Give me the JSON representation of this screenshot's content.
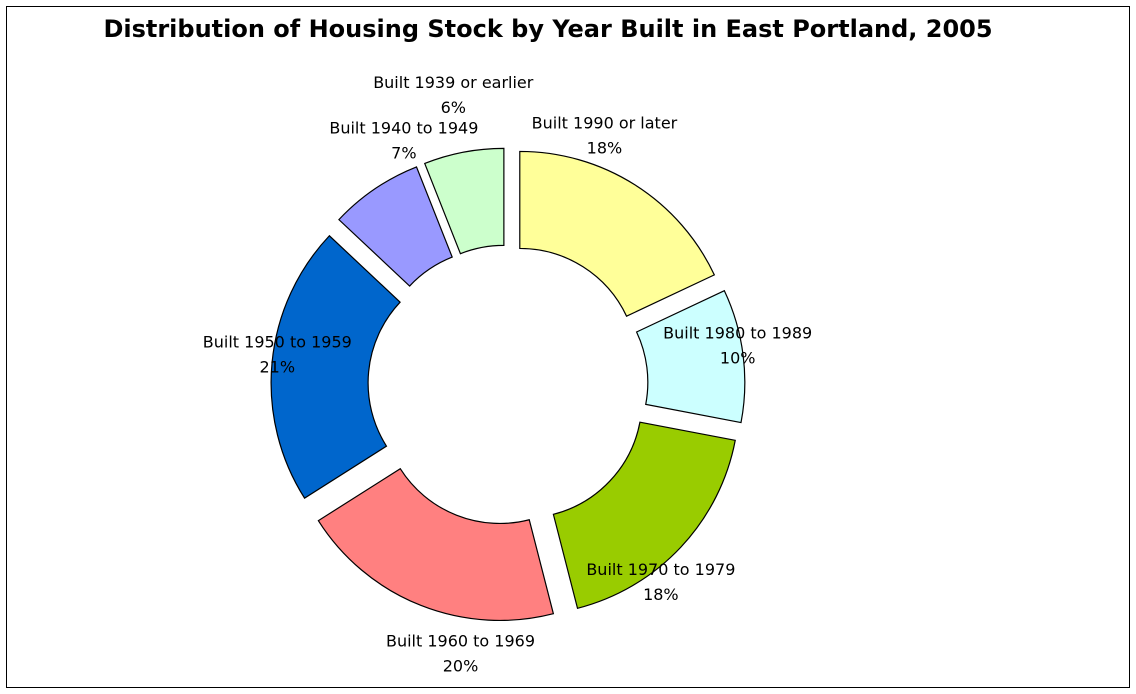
{
  "chart_data": {
    "type": "donut",
    "title": "Distribution of Housing Stock by Year Built in East Portland, 2005",
    "categories": [
      "Built 1990 or later",
      "Built 1980 to 1989",
      "Built 1970 to 1979",
      "Built 1960 to 1969",
      "Built 1950 to 1959",
      "Built 1940 to 1949",
      "Built 1939 or earlier"
    ],
    "values": [
      18,
      10,
      18,
      20,
      21,
      7,
      6
    ],
    "value_labels": [
      "18%",
      "10%",
      "18%",
      "20%",
      "21%",
      "7%",
      "6%"
    ],
    "colors": [
      "#ffff99",
      "#ccffff",
      "#99cc00",
      "#ff8080",
      "#0066cc",
      "#9999ff",
      "#ccffcc"
    ]
  }
}
